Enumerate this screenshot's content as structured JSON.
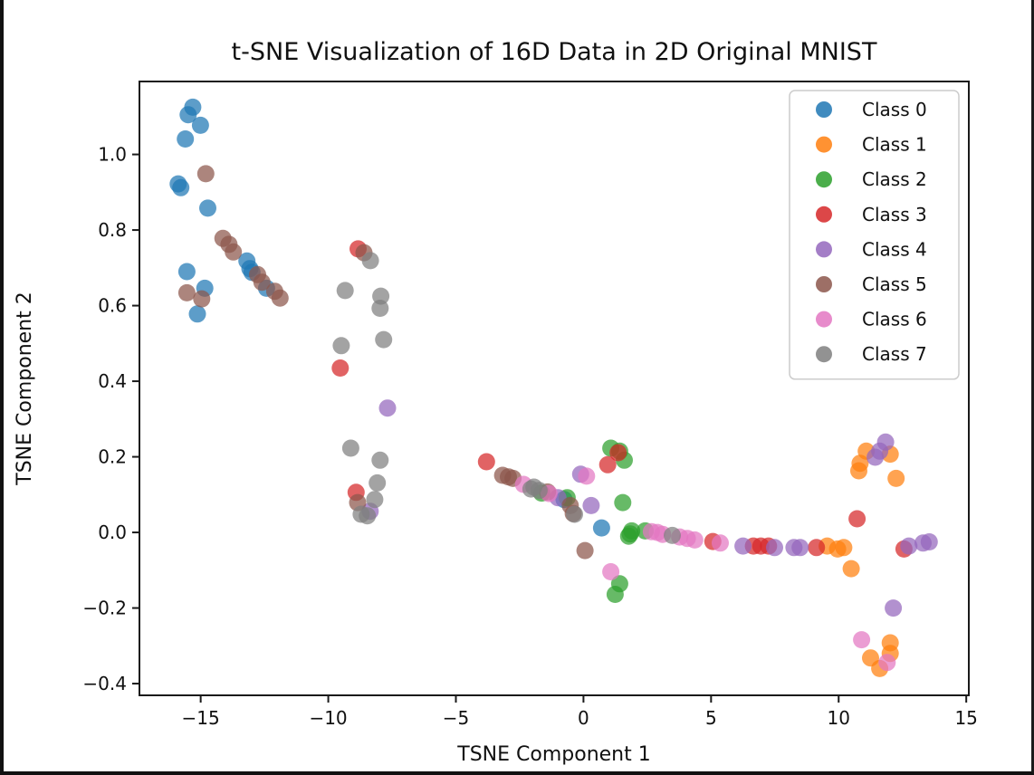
{
  "figure": {
    "background": "#ffffff",
    "frame_border_color": "#111111",
    "spine_color": "#1a1a1a",
    "legend_border_color": "#cccccc"
  },
  "chart_data": {
    "type": "scatter",
    "title": "t-SNE Visualization of 16D Data in 2D Original MNIST",
    "xlabel": "TSNE Component 1",
    "ylabel": "TSNE Component 2",
    "xlim": [
      -17.4,
      15.1
    ],
    "ylim": [
      -0.431,
      1.193
    ],
    "xticks": [
      -15,
      -10,
      -5,
      0,
      5,
      10,
      15
    ],
    "yticks": [
      1.0,
      0.8,
      0.6,
      0.4,
      0.2,
      0.0,
      -0.2,
      -0.4
    ],
    "grid": false,
    "legend_position": "upper right",
    "marker_alpha": 0.72,
    "marker_radius": 9.5,
    "series": [
      {
        "name": "Class 0",
        "color": "#1f77b4",
        "points": [
          [
            -15.31,
            1.125
          ],
          [
            -15.49,
            1.105
          ],
          [
            -15.01,
            1.077
          ],
          [
            -15.6,
            1.041
          ],
          [
            -15.88,
            0.922
          ],
          [
            -15.78,
            0.912
          ],
          [
            -14.72,
            0.858
          ],
          [
            -15.54,
            0.69
          ],
          [
            -14.84,
            0.646
          ],
          [
            -15.13,
            0.578
          ],
          [
            -13.19,
            0.718
          ],
          [
            -13.07,
            0.698
          ],
          [
            -12.99,
            0.688
          ],
          [
            -12.42,
            0.646
          ],
          [
            -0.76,
            0.087
          ],
          [
            0.71,
            0.012
          ]
        ]
      },
      {
        "name": "Class 1",
        "color": "#ff7f0e",
        "points": [
          [
            11.08,
            0.215
          ],
          [
            12.02,
            0.207
          ],
          [
            10.84,
            0.183
          ],
          [
            10.79,
            0.163
          ],
          [
            12.25,
            0.143
          ],
          [
            9.55,
            -0.036
          ],
          [
            9.96,
            -0.044
          ],
          [
            10.2,
            -0.04
          ],
          [
            10.49,
            -0.096
          ],
          [
            12.02,
            -0.292
          ],
          [
            12.02,
            -0.32
          ],
          [
            11.25,
            -0.332
          ],
          [
            11.61,
            -0.36
          ]
        ]
      },
      {
        "name": "Class 2",
        "color": "#2ca02c",
        "points": [
          [
            1.07,
            0.223
          ],
          [
            1.42,
            0.215
          ],
          [
            1.6,
            0.191
          ],
          [
            1.54,
            0.079
          ],
          [
            1.89,
            0.004
          ],
          [
            1.83,
            -0.004
          ],
          [
            1.77,
            -0.01
          ],
          [
            2.42,
            0.004
          ],
          [
            1.42,
            -0.136
          ],
          [
            1.24,
            -0.164
          ],
          [
            -0.64,
            0.092
          ],
          [
            -1.64,
            0.104
          ]
        ]
      },
      {
        "name": "Class 3",
        "color": "#d62728",
        "points": [
          [
            -8.83,
            0.75
          ],
          [
            -9.53,
            0.435
          ],
          [
            -8.91,
            0.106
          ],
          [
            -3.8,
            0.187
          ],
          [
            1.36,
            0.211
          ],
          [
            0.95,
            0.179
          ],
          [
            5.07,
            -0.024
          ],
          [
            6.66,
            -0.036
          ],
          [
            6.95,
            -0.036
          ],
          [
            7.25,
            -0.036
          ],
          [
            9.13,
            -0.04
          ],
          [
            10.72,
            0.036
          ],
          [
            12.56,
            -0.044
          ]
        ]
      },
      {
        "name": "Class 4",
        "color": "#9467bd",
        "points": [
          [
            -7.68,
            0.329
          ],
          [
            -8.36,
            0.056
          ],
          [
            -1.0,
            0.092
          ],
          [
            -0.11,
            0.154
          ],
          [
            0.3,
            0.071
          ],
          [
            6.25,
            -0.036
          ],
          [
            7.49,
            -0.04
          ],
          [
            8.25,
            -0.04
          ],
          [
            8.49,
            -0.04
          ],
          [
            11.84,
            0.239
          ],
          [
            11.61,
            0.215
          ],
          [
            11.43,
            0.199
          ],
          [
            13.31,
            -0.028
          ],
          [
            13.55,
            -0.025
          ],
          [
            12.75,
            -0.036
          ],
          [
            12.14,
            -0.2
          ]
        ]
      },
      {
        "name": "Class 5",
        "color": "#8c564b",
        "points": [
          [
            -14.8,
            0.949
          ],
          [
            -15.54,
            0.634
          ],
          [
            -14.96,
            0.618
          ],
          [
            -8.6,
            0.74
          ],
          [
            -8.85,
            0.079
          ],
          [
            -14.13,
            0.778
          ],
          [
            -13.89,
            0.762
          ],
          [
            -13.72,
            0.742
          ],
          [
            -12.77,
            0.682
          ],
          [
            -12.6,
            0.662
          ],
          [
            -12.1,
            0.638
          ],
          [
            -11.89,
            0.62
          ],
          [
            -3.17,
            0.151
          ],
          [
            -2.94,
            0.147
          ],
          [
            -2.76,
            0.143
          ],
          [
            -1.41,
            0.107
          ],
          [
            -0.52,
            0.071
          ],
          [
            -0.4,
            0.05
          ],
          [
            0.06,
            -0.048
          ]
        ]
      },
      {
        "name": "Class 6",
        "color": "#e377c2",
        "points": [
          [
            -2.35,
            0.127
          ],
          [
            -1.35,
            0.103
          ],
          [
            0.12,
            0.149
          ],
          [
            1.07,
            -0.104
          ],
          [
            2.66,
            0.002
          ],
          [
            2.9,
            0.0
          ],
          [
            3.1,
            -0.005
          ],
          [
            3.77,
            -0.012
          ],
          [
            4.07,
            -0.016
          ],
          [
            4.36,
            -0.02
          ],
          [
            5.36,
            -0.028
          ],
          [
            10.9,
            -0.284
          ],
          [
            11.9,
            -0.344
          ]
        ]
      },
      {
        "name": "Class 7",
        "color": "#7f7f7f",
        "points": [
          [
            -8.35,
            0.719
          ],
          [
            -9.34,
            0.64
          ],
          [
            -7.94,
            0.625
          ],
          [
            -7.97,
            0.593
          ],
          [
            -7.83,
            0.51
          ],
          [
            -9.49,
            0.494
          ],
          [
            -9.12,
            0.223
          ],
          [
            -7.97,
            0.191
          ],
          [
            -8.08,
            0.131
          ],
          [
            -8.18,
            0.087
          ],
          [
            -8.71,
            0.048
          ],
          [
            -8.47,
            0.044
          ],
          [
            -2.06,
            0.115
          ],
          [
            -1.94,
            0.12
          ],
          [
            -1.74,
            0.111
          ],
          [
            -0.35,
            0.048
          ],
          [
            3.48,
            -0.008
          ]
        ]
      }
    ]
  }
}
